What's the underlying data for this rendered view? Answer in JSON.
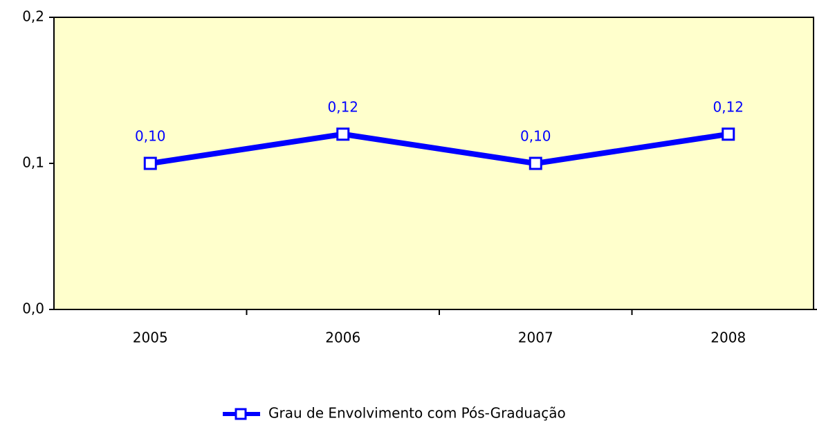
{
  "chart_data": {
    "type": "line",
    "categories": [
      "2005",
      "2006",
      "2007",
      "2008"
    ],
    "series": [
      {
        "name": "Grau de Envolvimento com Pós-Graduação",
        "color": "#0000ff",
        "values": [
          0.1,
          0.12,
          0.1,
          0.12
        ],
        "value_labels": [
          "0,10",
          "0,12",
          "0,10",
          "0,12"
        ]
      }
    ],
    "ylim": [
      0,
      0.2
    ],
    "yticks": [
      {
        "value": 0,
        "label": "0,0"
      },
      {
        "value": 0.1,
        "label": "0,1"
      },
      {
        "value": 0.2,
        "label": "0,2"
      }
    ],
    "plot_background": "#ffffcc",
    "legend": "bottom"
  }
}
